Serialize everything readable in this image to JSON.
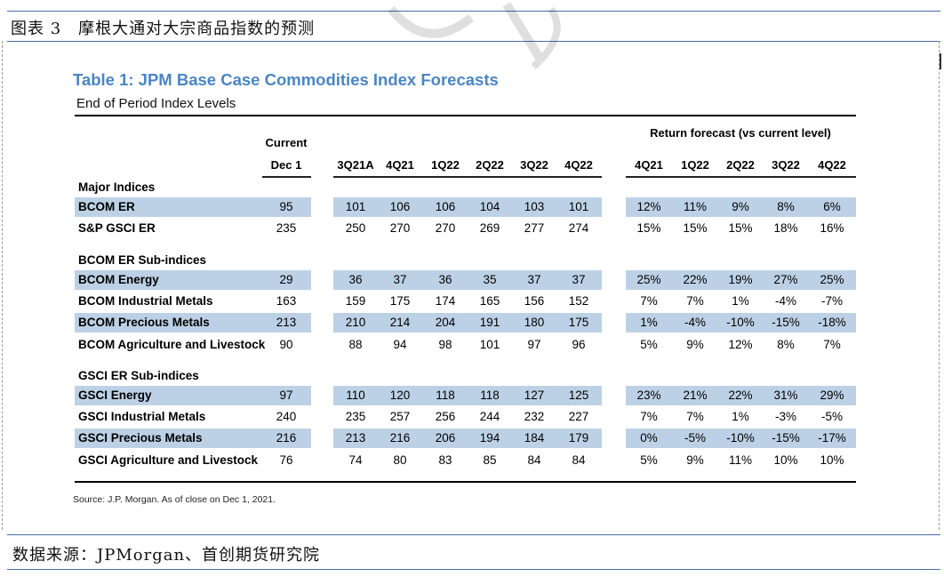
{
  "figure_title": "图表 3　摩根大通对大宗商品指数的预测",
  "source_footer": "数据来源：JPMorgan、首创期货研究院",
  "table": {
    "title": "Table 1: JPM Base Case Commodities Index Forecasts",
    "subtitle": "End of Period Index Levels",
    "header": {
      "current_line1": "Current",
      "current_line2": "Dec 1",
      "return_group": "Return forecast (vs current level)",
      "levels_periods": [
        "3Q21A",
        "4Q21",
        "1Q22",
        "2Q22",
        "3Q22",
        "4Q22"
      ],
      "return_periods": [
        "4Q21",
        "1Q22",
        "2Q22",
        "3Q22",
        "4Q22"
      ]
    },
    "sections": [
      {
        "label": "Major Indices",
        "rows": [
          {
            "name": "BCOM ER",
            "current": "95",
            "levels": [
              "101",
              "106",
              "106",
              "104",
              "103",
              "101"
            ],
            "returns": [
              "12%",
              "11%",
              "9%",
              "8%",
              "6%"
            ],
            "shaded": true
          },
          {
            "name": "S&P GSCI ER",
            "current": "235",
            "levels": [
              "250",
              "270",
              "270",
              "269",
              "277",
              "274"
            ],
            "returns": [
              "15%",
              "15%",
              "15%",
              "18%",
              "16%"
            ],
            "shaded": false
          }
        ]
      },
      {
        "label": "BCOM ER Sub-indices",
        "rows": [
          {
            "name": "BCOM Energy",
            "current": "29",
            "levels": [
              "36",
              "37",
              "36",
              "35",
              "37",
              "37"
            ],
            "returns": [
              "25%",
              "22%",
              "19%",
              "27%",
              "25%"
            ],
            "shaded": true
          },
          {
            "name": "BCOM Industrial Metals",
            "current": "163",
            "levels": [
              "159",
              "175",
              "174",
              "165",
              "156",
              "152"
            ],
            "returns": [
              "7%",
              "7%",
              "1%",
              "-4%",
              "-7%"
            ],
            "shaded": false
          },
          {
            "name": "BCOM Precious Metals",
            "current": "213",
            "levels": [
              "210",
              "214",
              "204",
              "191",
              "180",
              "175"
            ],
            "returns": [
              "1%",
              "-4%",
              "-10%",
              "-15%",
              "-18%"
            ],
            "shaded": true
          },
          {
            "name": "BCOM Agriculture and Livestock",
            "current": "90",
            "levels": [
              "88",
              "94",
              "98",
              "101",
              "97",
              "96"
            ],
            "returns": [
              "5%",
              "9%",
              "12%",
              "8%",
              "7%"
            ],
            "shaded": false
          }
        ]
      },
      {
        "label": "GSCI ER Sub-indices",
        "rows": [
          {
            "name": "GSCI Energy",
            "current": "97",
            "levels": [
              "110",
              "120",
              "118",
              "118",
              "127",
              "125"
            ],
            "returns": [
              "23%",
              "21%",
              "22%",
              "31%",
              "29%"
            ],
            "shaded": true
          },
          {
            "name": "GSCI Industrial Metals",
            "current": "240",
            "levels": [
              "235",
              "257",
              "256",
              "244",
              "232",
              "227"
            ],
            "returns": [
              "7%",
              "7%",
              "1%",
              "-3%",
              "-5%"
            ],
            "shaded": false
          },
          {
            "name": "GSCI Precious Metals",
            "current": "216",
            "levels": [
              "213",
              "216",
              "206",
              "194",
              "184",
              "179"
            ],
            "returns": [
              "0%",
              "-5%",
              "-10%",
              "-15%",
              "-17%"
            ],
            "shaded": true
          },
          {
            "name": "GSCI Agriculture and Livestock",
            "current": "76",
            "levels": [
              "74",
              "80",
              "83",
              "85",
              "84",
              "84"
            ],
            "returns": [
              "5%",
              "9%",
              "11%",
              "10%",
              "10%"
            ],
            "shaded": false
          }
        ]
      }
    ],
    "source_note": "Source: J.P. Morgan. As of close on Dec 1, 2021."
  },
  "colors": {
    "title_blue": "#4a86c5",
    "band_blue": "#bdd1e6",
    "frame_blue": "#4a6da7"
  }
}
